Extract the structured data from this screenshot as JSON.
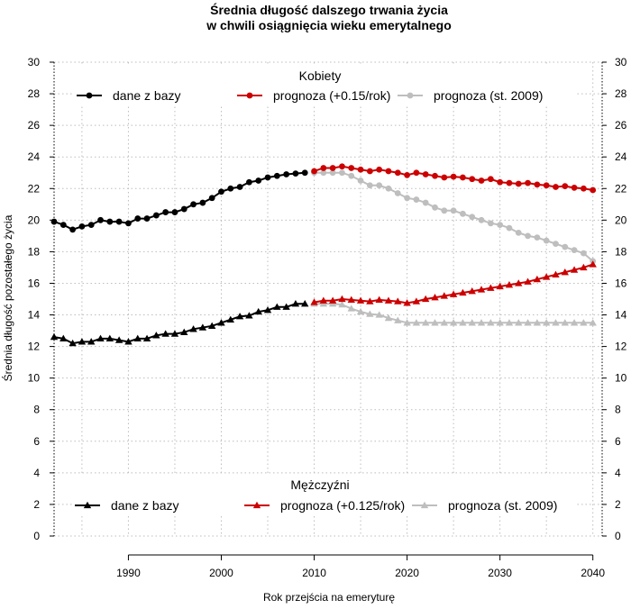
{
  "chart_data": {
    "type": "line",
    "title": [
      "Średnia długość dalszego trwania życia",
      "w chwili osiągnięcia wieku emerytalnego"
    ],
    "xlabel": "Rok przejścia na emeryturę",
    "ylabel": "Średnia długość pozostałego życia",
    "xlim": [
      1982,
      2041
    ],
    "ylim": [
      0,
      30
    ],
    "x_ticks": [
      "1990",
      "2000",
      "2010",
      "2020",
      "2030",
      "2040"
    ],
    "y_ticks": [
      "0",
      "2",
      "4",
      "6",
      "8",
      "10",
      "12",
      "14",
      "16",
      "18",
      "20",
      "22",
      "24",
      "26",
      "28",
      "30"
    ],
    "grid": true,
    "colors": {
      "data": "#000000",
      "forecast": "#cc0000",
      "forecast2009": "#bebebe"
    },
    "legends": [
      {
        "title": "Kobiety",
        "position": "top",
        "marker": "circle",
        "entries": [
          {
            "label": "dane z bazy",
            "color": "#000000"
          },
          {
            "label": "prognoza (+0.15/rok)",
            "color": "#cc0000"
          },
          {
            "label": "prognoza (st. 2009)",
            "color": "#bebebe"
          }
        ]
      },
      {
        "title": "Mężczyźni",
        "position": "bottom",
        "marker": "triangle",
        "entries": [
          {
            "label": "dane z bazy",
            "color": "#000000"
          },
          {
            "label": "prognoza (+0.125/rok)",
            "color": "#cc0000"
          },
          {
            "label": "prognoza (st. 2009)",
            "color": "#bebebe"
          }
        ]
      }
    ],
    "series": [
      {
        "group": "Kobiety",
        "legend": "dane z bazy",
        "marker": "circle",
        "color": "#000000",
        "x": [
          1982,
          1983,
          1984,
          1985,
          1986,
          1987,
          1988,
          1989,
          1990,
          1991,
          1992,
          1993,
          1994,
          1995,
          1996,
          1997,
          1998,
          1999,
          2000,
          2001,
          2002,
          2003,
          2004,
          2005,
          2006,
          2007,
          2008,
          2009
        ],
        "y": [
          19.9,
          19.7,
          19.4,
          19.6,
          19.7,
          20.0,
          19.9,
          19.9,
          19.8,
          20.1,
          20.1,
          20.3,
          20.5,
          20.5,
          20.7,
          21.0,
          21.1,
          21.4,
          21.8,
          22.0,
          22.1,
          22.4,
          22.5,
          22.7,
          22.8,
          22.9,
          22.95,
          23.0
        ]
      },
      {
        "group": "Kobiety",
        "legend": "prognoza (st. 2009)",
        "marker": "circle",
        "color": "#bebebe",
        "x": [
          2010,
          2011,
          2012,
          2013,
          2014,
          2015,
          2016,
          2017,
          2018,
          2019,
          2020,
          2021,
          2022,
          2023,
          2024,
          2025,
          2026,
          2027,
          2028,
          2029,
          2030,
          2031,
          2032,
          2033,
          2034,
          2035,
          2036,
          2037,
          2038,
          2039,
          2040
        ],
        "y": [
          23.0,
          23.0,
          23.0,
          23.0,
          22.8,
          22.5,
          22.2,
          22.2,
          22.0,
          21.7,
          21.4,
          21.3,
          21.1,
          20.8,
          20.6,
          20.6,
          20.4,
          20.2,
          20.0,
          19.8,
          19.7,
          19.5,
          19.2,
          19.0,
          18.9,
          18.7,
          18.5,
          18.3,
          18.1,
          17.9,
          17.4
        ]
      },
      {
        "group": "Kobiety",
        "legend": "prognoza (+0.15/rok)",
        "marker": "circle",
        "color": "#cc0000",
        "x": [
          2010,
          2011,
          2012,
          2013,
          2014,
          2015,
          2016,
          2017,
          2018,
          2019,
          2020,
          2021,
          2022,
          2023,
          2024,
          2025,
          2026,
          2027,
          2028,
          2029,
          2030,
          2031,
          2032,
          2033,
          2034,
          2035,
          2036,
          2037,
          2038,
          2039,
          2040
        ],
        "y": [
          23.1,
          23.3,
          23.3,
          23.4,
          23.3,
          23.2,
          23.1,
          23.2,
          23.1,
          23.0,
          22.85,
          23.0,
          22.9,
          22.8,
          22.7,
          22.75,
          22.7,
          22.6,
          22.5,
          22.6,
          22.4,
          22.35,
          22.3,
          22.35,
          22.25,
          22.2,
          22.1,
          22.15,
          22.05,
          22.0,
          21.9
        ]
      },
      {
        "group": "Mężczyźni",
        "legend": "dane z bazy",
        "marker": "triangle",
        "color": "#000000",
        "x": [
          1982,
          1983,
          1984,
          1985,
          1986,
          1987,
          1988,
          1989,
          1990,
          1991,
          1992,
          1993,
          1994,
          1995,
          1996,
          1997,
          1998,
          1999,
          2000,
          2001,
          2002,
          2003,
          2004,
          2005,
          2006,
          2007,
          2008,
          2009
        ],
        "y": [
          12.6,
          12.5,
          12.2,
          12.3,
          12.3,
          12.5,
          12.5,
          12.4,
          12.3,
          12.5,
          12.5,
          12.7,
          12.8,
          12.8,
          12.9,
          13.1,
          13.2,
          13.3,
          13.5,
          13.7,
          13.9,
          13.95,
          14.2,
          14.3,
          14.5,
          14.5,
          14.7,
          14.7
        ]
      },
      {
        "group": "Mężczyźni",
        "legend": "prognoza (st. 2009)",
        "marker": "triangle",
        "color": "#bebebe",
        "x": [
          2010,
          2011,
          2012,
          2013,
          2014,
          2015,
          2016,
          2017,
          2018,
          2019,
          2020,
          2021,
          2022,
          2023,
          2024,
          2025,
          2026,
          2027,
          2028,
          2029,
          2030,
          2031,
          2032,
          2033,
          2034,
          2035,
          2036,
          2037,
          2038,
          2039,
          2040
        ],
        "y": [
          14.7,
          14.7,
          14.7,
          14.65,
          14.4,
          14.2,
          14.05,
          14.0,
          13.8,
          13.65,
          13.5,
          13.5,
          13.5,
          13.5,
          13.5,
          13.5,
          13.5,
          13.5,
          13.5,
          13.5,
          13.5,
          13.5,
          13.5,
          13.5,
          13.5,
          13.5,
          13.5,
          13.5,
          13.5,
          13.5,
          13.5
        ]
      },
      {
        "group": "Mężczyźni",
        "legend": "prognoza (+0.125/rok)",
        "marker": "triangle",
        "color": "#cc0000",
        "x": [
          2010,
          2011,
          2012,
          2013,
          2014,
          2015,
          2016,
          2017,
          2018,
          2019,
          2020,
          2021,
          2022,
          2023,
          2024,
          2025,
          2026,
          2027,
          2028,
          2029,
          2030,
          2031,
          2032,
          2033,
          2034,
          2035,
          2036,
          2037,
          2038,
          2039,
          2040
        ],
        "y": [
          14.8,
          14.9,
          14.9,
          15.0,
          14.95,
          14.9,
          14.85,
          14.95,
          14.9,
          14.85,
          14.75,
          14.85,
          15.0,
          15.1,
          15.2,
          15.3,
          15.4,
          15.5,
          15.6,
          15.7,
          15.8,
          15.9,
          16.0,
          16.1,
          16.25,
          16.4,
          16.55,
          16.7,
          16.85,
          17.0,
          17.2
        ]
      }
    ]
  }
}
